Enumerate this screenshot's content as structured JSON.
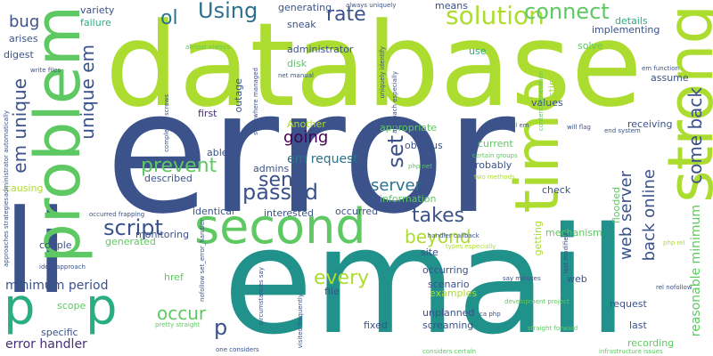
{
  "palette": {
    "lime": "#addc30",
    "green": "#5ec962",
    "teal": "#21918c",
    "blue": "#3b528b",
    "indigo": "#472d7b",
    "purple": "#440154",
    "sea": "#28ae80",
    "cyan": "#2c728e"
  },
  "words": [
    {
      "text": "database",
      "color": "lime"
    },
    {
      "text": "error",
      "color": "blue"
    },
    {
      "text": "email",
      "color": "teal"
    },
    {
      "text": "second",
      "color": "green"
    },
    {
      "text": "li",
      "color": "blue"
    },
    {
      "text": "strong",
      "color": "lime"
    },
    {
      "text": "problem",
      "color": "green"
    },
    {
      "text": "time",
      "color": "lime"
    },
    {
      "text": "p",
      "color": "sea"
    },
    {
      "text": "p",
      "color": "sea"
    },
    {
      "text": "solution",
      "color": "lime"
    },
    {
      "text": "connect",
      "color": "green"
    },
    {
      "text": "rate",
      "color": "blue"
    },
    {
      "text": "Using",
      "color": "cyan"
    },
    {
      "text": "ol",
      "color": "cyan"
    },
    {
      "text": "bug",
      "color": "blue"
    },
    {
      "text": "em unique",
      "color": "blue"
    },
    {
      "text": "unique em",
      "color": "blue"
    },
    {
      "text": "come back",
      "color": "blue"
    },
    {
      "text": "script",
      "color": "blue"
    },
    {
      "text": "prevent",
      "color": "green"
    },
    {
      "text": "passed",
      "color": "blue"
    },
    {
      "text": "going",
      "color": "purple"
    },
    {
      "text": "send",
      "color": "blue"
    },
    {
      "text": "em request",
      "color": "cyan"
    },
    {
      "text": "server",
      "color": "cyan"
    },
    {
      "text": "set",
      "color": "blue"
    },
    {
      "text": "takes",
      "color": "blue"
    },
    {
      "text": "beyond",
      "color": "lime"
    },
    {
      "text": "back online",
      "color": "blue"
    },
    {
      "text": "web server",
      "color": "blue"
    },
    {
      "text": "every",
      "color": "lime"
    },
    {
      "text": "occur",
      "color": "green"
    },
    {
      "text": "p",
      "color": "blue"
    },
    {
      "text": "minimum period",
      "color": "blue"
    },
    {
      "text": "error handler",
      "color": "indigo"
    },
    {
      "text": "reasonable minimum",
      "color": "green"
    },
    {
      "text": "variety",
      "color": "blue"
    },
    {
      "text": "failure",
      "color": "sea"
    },
    {
      "text": "arises",
      "color": "blue"
    },
    {
      "text": "digest",
      "color": "blue"
    },
    {
      "text": "generating",
      "color": "blue"
    },
    {
      "text": "sneak",
      "color": "blue"
    },
    {
      "text": "administrator",
      "color": "blue"
    },
    {
      "text": "disk",
      "color": "green"
    },
    {
      "text": "outage",
      "color": "blue"
    },
    {
      "text": "means",
      "color": "blue"
    },
    {
      "text": "details",
      "color": "sea"
    },
    {
      "text": "solve",
      "color": "green"
    },
    {
      "text": "implementing",
      "color": "blue"
    },
    {
      "text": "use",
      "color": "sea"
    },
    {
      "text": "testing",
      "color": "lime"
    },
    {
      "text": "assume",
      "color": "blue"
    },
    {
      "text": "values",
      "color": "blue"
    },
    {
      "text": "first",
      "color": "indigo"
    },
    {
      "text": "Another",
      "color": "lime"
    },
    {
      "text": "appropriate",
      "color": "green"
    },
    {
      "text": "obvious",
      "color": "blue"
    },
    {
      "text": "current",
      "color": "green"
    },
    {
      "text": "able",
      "color": "blue"
    },
    {
      "text": "admins",
      "color": "blue"
    },
    {
      "text": "probably",
      "color": "blue"
    },
    {
      "text": "described",
      "color": "blue"
    },
    {
      "text": "receiving",
      "color": "blue"
    },
    {
      "text": "causing",
      "color": "lime"
    },
    {
      "text": "information",
      "color": "green"
    },
    {
      "text": "check",
      "color": "blue"
    },
    {
      "text": "identical",
      "color": "blue"
    },
    {
      "text": "monitoring",
      "color": "blue"
    },
    {
      "text": "interested",
      "color": "blue"
    },
    {
      "text": "occurred",
      "color": "blue"
    },
    {
      "text": "mechanism",
      "color": "green"
    },
    {
      "text": "flooded",
      "color": "green"
    },
    {
      "text": "couple",
      "color": "blue"
    },
    {
      "text": "generated",
      "color": "green"
    },
    {
      "text": "getting",
      "color": "lime"
    },
    {
      "text": "site",
      "color": "blue"
    },
    {
      "text": "occurring",
      "color": "blue"
    },
    {
      "text": "scenario",
      "color": "blue"
    },
    {
      "text": "examples",
      "color": "lime"
    },
    {
      "text": "href",
      "color": "green"
    },
    {
      "text": "file",
      "color": "blue"
    },
    {
      "text": "scope",
      "color": "green"
    },
    {
      "text": "specific",
      "color": "blue"
    },
    {
      "text": "unplanned",
      "color": "blue"
    },
    {
      "text": "screaming",
      "color": "blue"
    },
    {
      "text": "fixed",
      "color": "blue"
    },
    {
      "text": "web",
      "color": "blue"
    },
    {
      "text": "request",
      "color": "blue"
    },
    {
      "text": "last",
      "color": "blue"
    },
    {
      "text": "recording",
      "color": "green"
    },
    {
      "text": "em function",
      "color": "blue"
    },
    {
      "text": "end system",
      "color": "blue"
    },
    {
      "text": "will flag",
      "color": "blue"
    },
    {
      "text": "manual em",
      "color": "blue"
    },
    {
      "text": "php net",
      "color": "green"
    },
    {
      "text": "certain groups",
      "color": "green"
    },
    {
      "text": "two methods",
      "color": "lime"
    },
    {
      "text": "handler callback",
      "color": "blue"
    },
    {
      "text": "types especially",
      "color": "lime"
    },
    {
      "text": "php rel",
      "color": "lime"
    },
    {
      "text": "rel nofollow",
      "color": "blue"
    },
    {
      "text": "last modified",
      "color": "blue"
    },
    {
      "text": "say minutes",
      "color": "blue"
    },
    {
      "text": "development project",
      "color": "green"
    },
    {
      "text": "ca php",
      "color": "blue"
    },
    {
      "text": "straight forward",
      "color": "green"
    },
    {
      "text": "infrastructure issues",
      "color": "green"
    },
    {
      "text": "considers certain",
      "color": "green"
    },
    {
      "text": "one considers",
      "color": "blue"
    },
    {
      "text": "pretty straight",
      "color": "green"
    },
    {
      "text": "visited frequently",
      "color": "blue"
    },
    {
      "text": "circumstances say",
      "color": "blue"
    },
    {
      "text": "nofollow set_error_handler",
      "color": "blue"
    },
    {
      "text": "occurred frapping",
      "color": "blue"
    },
    {
      "text": "ideal approach",
      "color": "blue"
    },
    {
      "text": "approaches strategies",
      "color": "blue"
    },
    {
      "text": "administrator automatically",
      "color": "blue"
    },
    {
      "text": "write files",
      "color": "blue"
    },
    {
      "text": "completely screws",
      "color": "blue"
    },
    {
      "text": "almost always",
      "color": "green"
    },
    {
      "text": "somewhere managed",
      "color": "blue"
    },
    {
      "text": "net manual",
      "color": "blue"
    },
    {
      "text": "always uniquely",
      "color": "blue"
    },
    {
      "text": "uniquely identify",
      "color": "blue"
    },
    {
      "text": "approach especially",
      "color": "blue"
    },
    {
      "text": "content generation",
      "color": "green"
    }
  ]
}
